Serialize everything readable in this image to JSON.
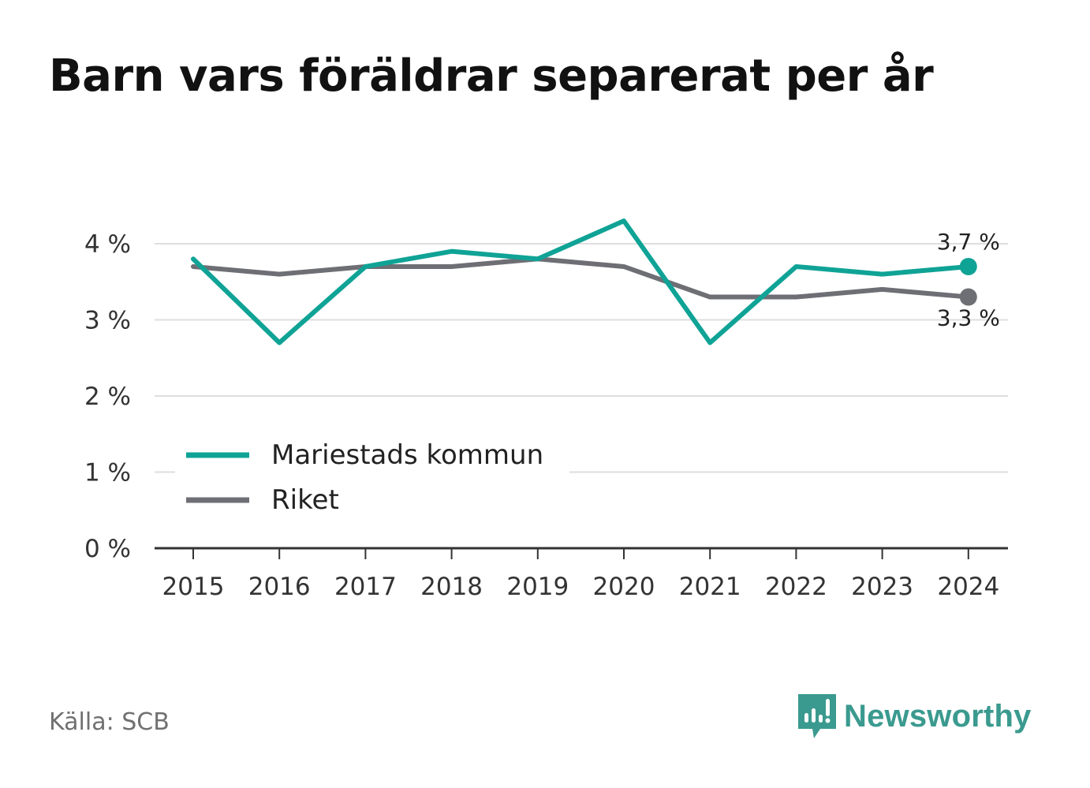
{
  "title": "Barn vars föräldrar separerat per år",
  "source": "Källa: SCB",
  "brand": {
    "name": "Newsworthy",
    "icon": "newsworthy-logo-icon",
    "color": "#3b9a8f"
  },
  "chart_data": {
    "type": "line",
    "title": "Barn vars föräldrar separerat per år",
    "xlabel": "",
    "ylabel": "",
    "x": [
      "2015",
      "2016",
      "2017",
      "2018",
      "2019",
      "2020",
      "2021",
      "2022",
      "2023",
      "2024"
    ],
    "ylim": [
      0,
      4
    ],
    "yticks": [
      0,
      1,
      2,
      3,
      4
    ],
    "ytick_labels": [
      "0 %",
      "1 %",
      "2 %",
      "3 %",
      "4 %"
    ],
    "grid": true,
    "legend_position": "bottom-left",
    "series": [
      {
        "name": "Mariestads kommun",
        "color": "#0fa396",
        "values": [
          3.8,
          2.7,
          3.7,
          3.9,
          3.8,
          4.3,
          2.7,
          3.7,
          3.6,
          3.7
        ],
        "end_label": "3,7 %"
      },
      {
        "name": "Riket",
        "color": "#6e6e75",
        "values": [
          3.7,
          3.6,
          3.7,
          3.7,
          3.8,
          3.7,
          3.3,
          3.3,
          3.4,
          3.3
        ],
        "end_label": "3,3 %"
      }
    ]
  }
}
